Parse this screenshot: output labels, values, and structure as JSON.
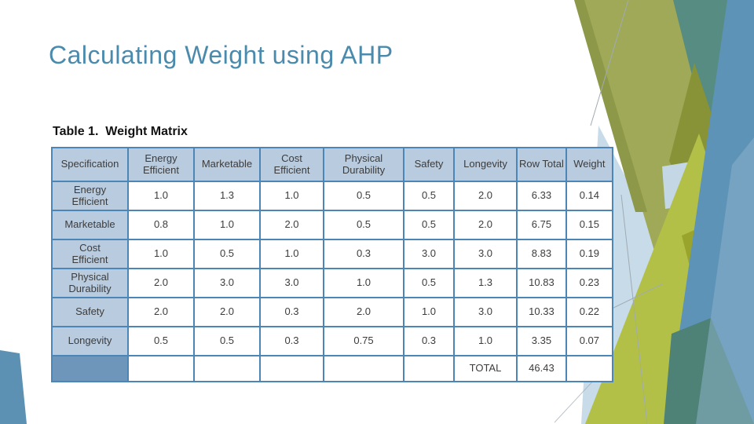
{
  "slide": {
    "title": "Calculating Weight using AHP",
    "caption": "Table 1.  Weight Matrix"
  },
  "table": {
    "columns": [
      "Specification",
      "Energy Efficient",
      "Marketable",
      "Cost Efficient",
      "Physical Durability",
      "Safety",
      "Longevity",
      "Row Total",
      "Weight"
    ],
    "rows": [
      {
        "label": "Energy Efficient",
        "values": [
          "1.0",
          "1.3",
          "1.0",
          "0.5",
          "0.5",
          "2.0",
          "6.33",
          "0.14"
        ]
      },
      {
        "label": "Marketable",
        "values": [
          "0.8",
          "1.0",
          "2.0",
          "0.5",
          "0.5",
          "2.0",
          "6.75",
          "0.15"
        ]
      },
      {
        "label": "Cost Efficient",
        "values": [
          "1.0",
          "0.5",
          "1.0",
          "0.3",
          "3.0",
          "3.0",
          "8.83",
          "0.19"
        ]
      },
      {
        "label": "Physical Durability",
        "values": [
          "2.0",
          "3.0",
          "3.0",
          "1.0",
          "0.5",
          "1.3",
          "10.83",
          "0.23"
        ]
      },
      {
        "label": "Safety",
        "values": [
          "2.0",
          "2.0",
          "0.3",
          "2.0",
          "1.0",
          "3.0",
          "10.33",
          "0.22"
        ]
      },
      {
        "label": "Longevity",
        "values": [
          "0.5",
          "0.5",
          "0.3",
          "0.75",
          "0.3",
          "1.0",
          "3.35",
          "0.07"
        ]
      }
    ],
    "total_row": {
      "label": "",
      "cells": [
        "",
        "",
        "",
        "",
        "",
        "TOTAL",
        "46.43",
        ""
      ]
    }
  },
  "colors": {
    "title": "#4a8bad",
    "border": "#4c86b6",
    "header_bg": "#b9cbde",
    "total_bg": "#6e96bb",
    "olive": "#9fa957",
    "olive_dark": "#8d9948",
    "teal": "#578c82",
    "overlap_dark": "#879336",
    "overlap_dark2": "#99a42c",
    "chartreuse": "#b3c047",
    "blue": "#5d93b6",
    "blue_teal": "#4f8277",
    "blue_light": "#8fb3cd",
    "pale": "#c8dbe9",
    "pale2": "#c3d7e5",
    "wedge_blue": "#5d91b4",
    "line_gray": "#a0abb2"
  }
}
